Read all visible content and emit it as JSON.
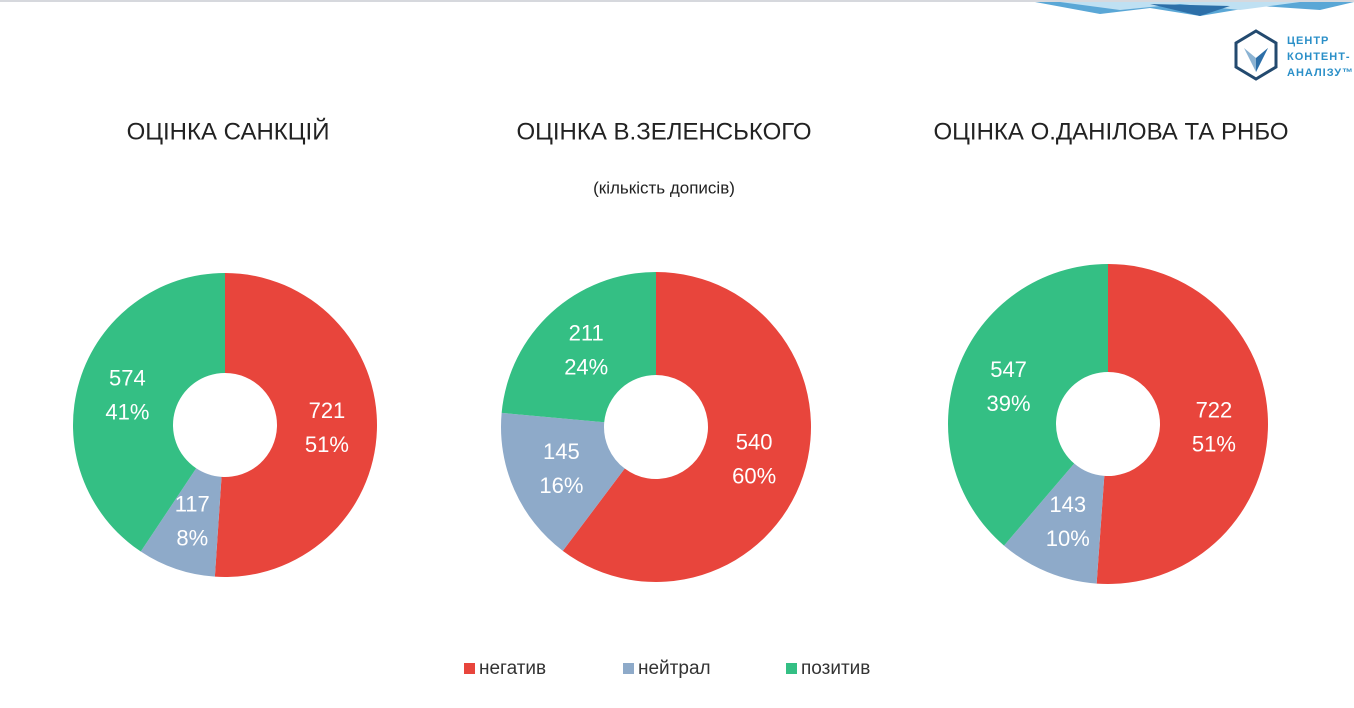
{
  "subtitle": "(кількість дописів)",
  "logo": [
    "ЦЕНТР",
    "КОНТЕНТ-",
    "АНАЛІЗУ™"
  ],
  "legend": {
    "categories": [
      "негатив",
      "нейтрал",
      "позитив"
    ],
    "colors": [
      "#e8453c",
      "#8eaac9",
      "#34bf84"
    ]
  },
  "chart_data": [
    {
      "type": "pie",
      "title": "ОЦІНКА САНКЦІЙ",
      "values": [
        721,
        117,
        574
      ],
      "percent_labels": [
        "51%",
        "8%",
        "41%"
      ]
    },
    {
      "type": "pie",
      "title": "ОЦІНКА В.ЗЕЛЕНСЬКОГО",
      "values": [
        540,
        145,
        211
      ],
      "percent_labels": [
        "60%",
        "16%",
        "24%"
      ]
    },
    {
      "type": "pie",
      "title": "ОЦІНКА О.ДАНІЛОВА ТА РНБО",
      "values": [
        722,
        143,
        547
      ],
      "percent_labels": [
        "51%",
        "10%",
        "39%"
      ]
    }
  ]
}
